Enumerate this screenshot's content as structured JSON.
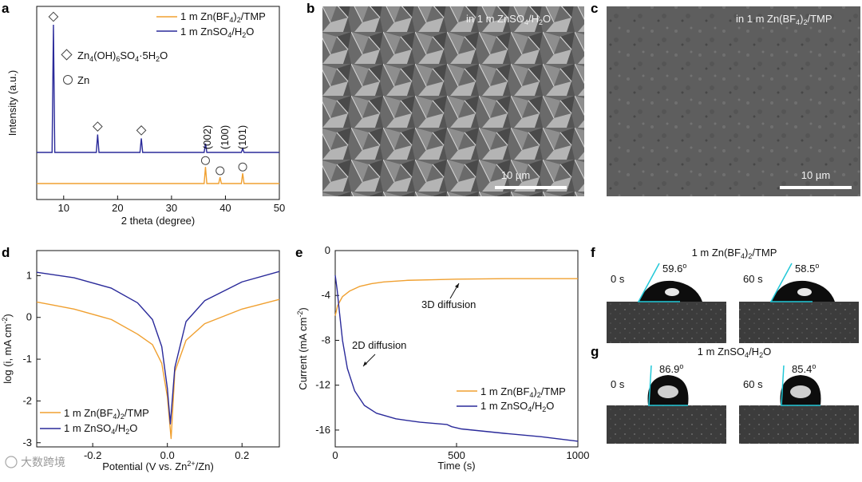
{
  "panels": {
    "a": "a",
    "b": "b",
    "c": "c",
    "d": "d",
    "e": "e",
    "f": "f",
    "g": "g"
  },
  "chart_data": [
    {
      "id": "a",
      "type": "line",
      "xlabel": "2 theta (degree)",
      "ylabel": "Intensity (a.u.)",
      "xlim": [
        5,
        50
      ],
      "xticks": [
        10,
        20,
        30,
        40,
        50
      ],
      "legend": [
        {
          "label": "1 m Zn(BF4)2/TMP",
          "color": "#f0a030"
        },
        {
          "label": "1 m ZnSO4/H2O",
          "color": "#2a2a9a"
        }
      ],
      "marker_legend": [
        {
          "symbol": "diamond",
          "label": "Zn4(OH)6SO4·5H2O"
        },
        {
          "symbol": "circle",
          "label": "Zn"
        }
      ],
      "series": [
        {
          "name": "1 m ZnSO4/H2O",
          "color": "#2a2a9a",
          "peaks": [
            8.1,
            16.3,
            24.4,
            36.3,
            43.2
          ],
          "peak_heights": [
            1.0,
            0.14,
            0.11,
            0.07,
            0.03
          ]
        },
        {
          "name": "1 m Zn(BF4)2/TMP",
          "color": "#f0a030",
          "peaks": [
            36.3,
            39.0,
            43.2
          ],
          "peak_heights": [
            0.13,
            0.05,
            0.08
          ]
        }
      ],
      "peak_labels": [
        "(002)",
        "(100)",
        "(101)"
      ]
    },
    {
      "id": "d",
      "type": "line",
      "xlabel": "Potential (V vs. Zn²⁺/Zn)",
      "ylabel": "log (i, mA cm⁻²)",
      "xlim": [
        -0.35,
        0.3
      ],
      "ylim": [
        -3.1,
        1.6
      ],
      "xticks": [
        -0.2,
        0.0,
        0.2
      ],
      "xtick_labels": [
        "-0.2",
        "0.0",
        "0.2"
      ],
      "yticks": [
        -3,
        -2,
        -1,
        0,
        1
      ],
      "series": [
        {
          "name": "1 m Zn(BF4)2/TMP",
          "color": "#f0a030",
          "x": [
            -0.35,
            -0.25,
            -0.15,
            -0.08,
            -0.04,
            -0.015,
            0.0,
            0.01,
            0.02,
            0.05,
            0.1,
            0.2,
            0.3
          ],
          "y": [
            0.37,
            0.2,
            -0.05,
            -0.4,
            -0.65,
            -1.1,
            -1.9,
            -2.9,
            -1.3,
            -0.55,
            -0.15,
            0.2,
            0.43
          ]
        },
        {
          "name": "1 m ZnSO4/H2O",
          "color": "#2a2a9a",
          "x": [
            -0.35,
            -0.25,
            -0.15,
            -0.08,
            -0.04,
            -0.015,
            0.0,
            0.008,
            0.02,
            0.05,
            0.1,
            0.2,
            0.3
          ],
          "y": [
            1.08,
            0.95,
            0.7,
            0.35,
            -0.05,
            -0.7,
            -1.7,
            -2.55,
            -1.2,
            -0.1,
            0.4,
            0.85,
            1.1
          ]
        }
      ],
      "legend": [
        {
          "label": "1 m Zn(BF4)2/TMP",
          "color": "#f0a030"
        },
        {
          "label": "1 m ZnSO4/H2O",
          "color": "#2a2a9a"
        }
      ]
    },
    {
      "id": "e",
      "type": "line",
      "xlabel": "Time (s)",
      "ylabel": "Current (mA cm⁻²)",
      "xlim": [
        0,
        1000
      ],
      "ylim": [
        -17.5,
        0
      ],
      "xticks": [
        0,
        500,
        1000
      ],
      "yticks": [
        -16,
        -12,
        -8,
        -4,
        0
      ],
      "series": [
        {
          "name": "1 m Zn(BF4)2/TMP",
          "color": "#f0a030",
          "x": [
            0,
            10,
            30,
            60,
            100,
            150,
            200,
            300,
            400,
            500,
            700,
            1000
          ],
          "y": [
            -5.8,
            -4.9,
            -4.1,
            -3.6,
            -3.2,
            -2.95,
            -2.8,
            -2.65,
            -2.6,
            -2.55,
            -2.5,
            -2.5
          ]
        },
        {
          "name": "1 m ZnSO4/H2O",
          "color": "#2a2a9a",
          "x": [
            0,
            8,
            15,
            30,
            50,
            80,
            120,
            170,
            250,
            350,
            460,
            480,
            520,
            700,
            850,
            1000
          ],
          "y": [
            -2.2,
            -3.5,
            -5.0,
            -8.0,
            -10.5,
            -12.5,
            -13.8,
            -14.5,
            -15.0,
            -15.3,
            -15.5,
            -15.7,
            -15.9,
            -16.3,
            -16.6,
            -17.0
          ]
        }
      ],
      "annotations": [
        "3D diffusion",
        "2D diffusion"
      ],
      "legend": [
        {
          "label": "1 m Zn(BF4)2/TMP",
          "color": "#f0a030"
        },
        {
          "label": "1 m ZnSO4/H2O",
          "color": "#2a2a9a"
        }
      ]
    }
  ],
  "sem": {
    "b_label": "in 1 m ZnSO4/H2O",
    "c_label": "in 1 m Zn(BF4)2/TMP",
    "scale_b": "10 µm",
    "scale_c": "10 µm"
  },
  "contact": {
    "f_title": "1 m Zn(BF4)2/TMP",
    "g_title": "1 m ZnSO4/H2O",
    "t0": "0 s",
    "t60": "60 s",
    "f0_angle": "59.6",
    "f60_angle": "58.5",
    "g0_angle": "86.9",
    "g60_angle": "85.4",
    "deg": "o"
  },
  "watermark": "大数跨境"
}
